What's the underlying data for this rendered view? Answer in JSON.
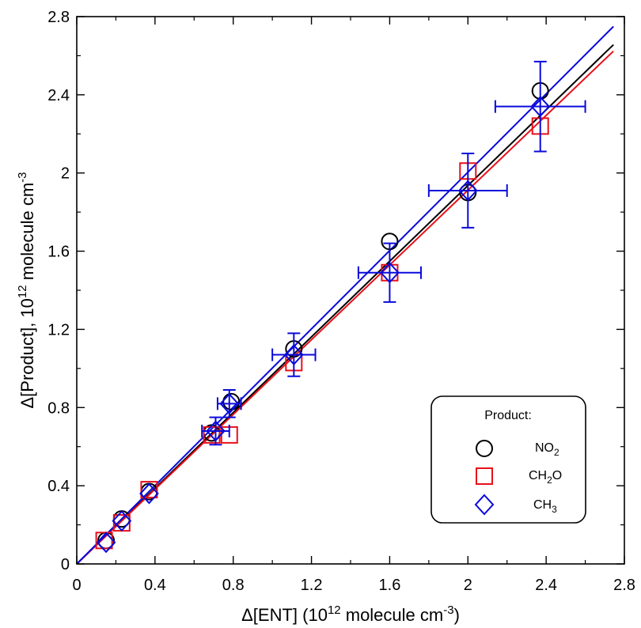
{
  "chart_data": {
    "type": "scatter",
    "xlabel": {
      "pre": "Δ[ENT] (10",
      "sup": "12",
      "post": " molecule cm",
      "sup2": "-3",
      "post2": ")"
    },
    "ylabel": {
      "pre": "Δ[Product], 10",
      "sup": "12",
      "post": " molecule cm",
      "sup2": "-3",
      "post2": ""
    },
    "xlim": [
      0,
      2.8
    ],
    "ylim": [
      0,
      2.8
    ],
    "xticks": [
      "0",
      "0.4",
      "0.8",
      "1.2",
      "1.6",
      "2",
      "2.4",
      "2.8"
    ],
    "yticks": [
      "0",
      "0.4",
      "0.8",
      "1.2",
      "1.6",
      "2",
      "2.4",
      "2.8"
    ],
    "legend": {
      "title": "Product:",
      "position": "lower-right"
    },
    "series": [
      {
        "name": "NO2",
        "label_base": "NO",
        "label_sub": "2",
        "marker": "circle",
        "color": "#000000",
        "fit_slope": 0.968,
        "x": [
          0.15,
          0.23,
          0.37,
          0.69,
          0.79,
          1.11,
          1.6,
          2.0,
          2.37
        ],
        "y": [
          0.12,
          0.23,
          0.37,
          0.67,
          0.83,
          1.1,
          1.65,
          1.9,
          2.42
        ]
      },
      {
        "name": "CH2O",
        "label_base": "CH",
        "label_sub": "2",
        "label_tail": "O",
        "marker": "square",
        "color": "#e8101a",
        "fit_slope": 0.956,
        "x": [
          0.14,
          0.23,
          0.37,
          0.69,
          0.78,
          1.11,
          1.6,
          2.0,
          2.37
        ],
        "y": [
          0.12,
          0.21,
          0.38,
          0.66,
          0.66,
          1.03,
          1.49,
          2.01,
          2.24
        ]
      },
      {
        "name": "CH3",
        "label_base": "CH",
        "label_sub": "3",
        "marker": "diamond",
        "color": "#0a0adc",
        "fit_slope": 1.002,
        "x": [
          0.15,
          0.23,
          0.37,
          0.71,
          0.78,
          1.11,
          1.6,
          2.0,
          2.37
        ],
        "y": [
          0.11,
          0.22,
          0.36,
          0.68,
          0.82,
          1.07,
          1.49,
          1.91,
          2.34
        ],
        "xerr": [
          0,
          0,
          0,
          0.07,
          0.06,
          0.11,
          0.16,
          0.2,
          0.23
        ],
        "yerr": [
          0,
          0,
          0,
          0.07,
          0.07,
          0.11,
          0.15,
          0.19,
          0.23
        ]
      }
    ]
  }
}
